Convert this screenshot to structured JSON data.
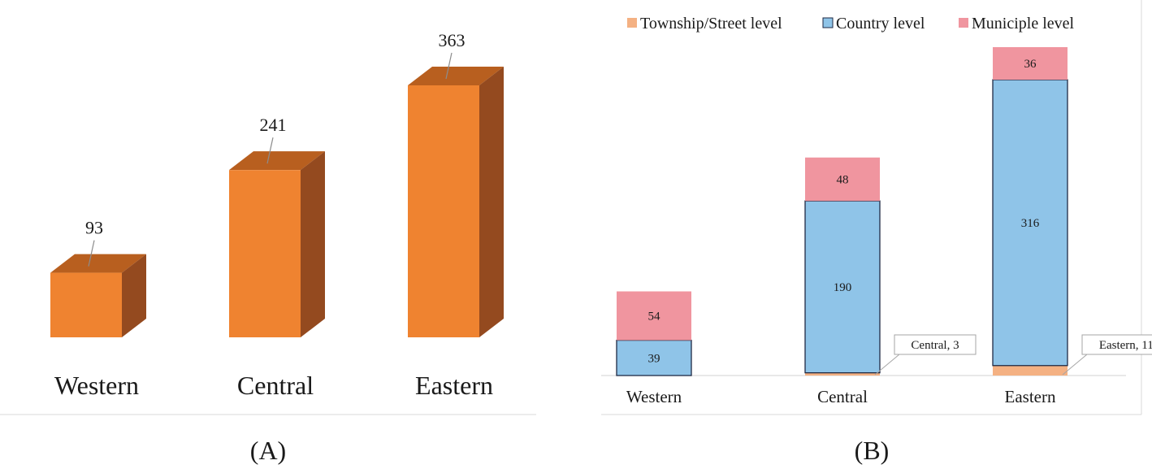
{
  "chart_data": [
    {
      "type": "bar",
      "panel_label": "(A)",
      "title": "",
      "xlabel": "",
      "ylabel": "",
      "categories": [
        "Western",
        "Central",
        "Eastern"
      ],
      "values": [
        93,
        241,
        363
      ],
      "ylim": [
        0,
        363
      ],
      "grid": false,
      "legend": "none",
      "colors": {
        "front": "#ef8330",
        "top": "#b85f1f",
        "side": "#944a1f",
        "leader": "#8c8c8c"
      }
    },
    {
      "type": "bar",
      "stacked": true,
      "panel_label": "(B)",
      "title": "",
      "xlabel": "",
      "ylabel": "",
      "categories": [
        "Western",
        "Central",
        "Eastern"
      ],
      "series": [
        {
          "name": "Township/Street level",
          "values": [
            0,
            3,
            11
          ],
          "color": "#f4b183"
        },
        {
          "name": "Country level",
          "values": [
            39,
            190,
            316
          ],
          "color": "#8fc4e8"
        },
        {
          "name": "Municiple level",
          "values": [
            54,
            48,
            36
          ],
          "color": "#f0959f"
        }
      ],
      "series_outline": [
        "#f4b183",
        "#1f2a44",
        "#f0959f"
      ],
      "data_labels": [
        [
          "",
          "Central, 3",
          "Eastern, 11"
        ],
        [
          "39",
          "190",
          "316"
        ],
        [
          "54",
          "48",
          "36"
        ]
      ],
      "ylim": [
        0,
        363
      ],
      "grid": false,
      "legend": "top",
      "colors": {
        "baseline": "#d0d0d0",
        "leader": "#a6a6a6",
        "callout_border": "#a6a6a6"
      }
    }
  ]
}
